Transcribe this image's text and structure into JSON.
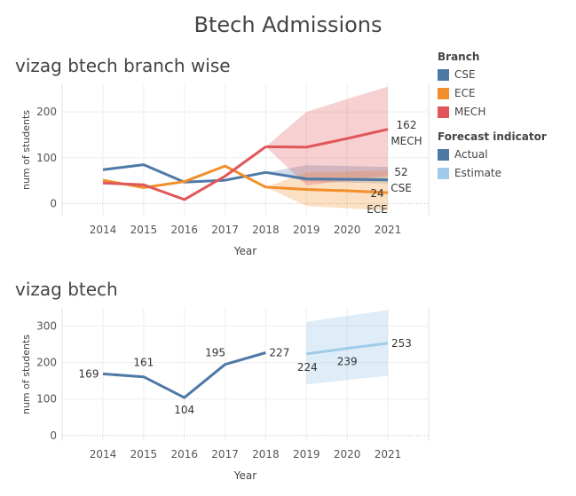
{
  "dashboard_title": "Btech Admissions",
  "legend": {
    "branch_title": "Branch",
    "branches": [
      {
        "name": "CSE",
        "color": "#4e79a7"
      },
      {
        "name": "ECE",
        "color": "#f28e2b"
      },
      {
        "name": "MECH",
        "color": "#e15759"
      }
    ],
    "forecast_title": "Forecast indicator",
    "indicators": [
      {
        "name": "Actual",
        "color": "#4e79a7"
      },
      {
        "name": "Estimate",
        "color": "#a0cbe8"
      }
    ]
  },
  "chart_data": [
    {
      "type": "line",
      "title": "vizag btech branch wise",
      "xlabel": "Year",
      "ylabel": "num of students",
      "x": [
        2014,
        2015,
        2016,
        2017,
        2018,
        2019,
        2020,
        2021
      ],
      "ylim": [
        -28,
        262
      ],
      "yticks": [
        0,
        100,
        200
      ],
      "series": [
        {
          "name": "CSE",
          "color": "#4e79a7",
          "actual": [
            74,
            85,
            47,
            51,
            68
          ],
          "forecast": [
            54,
            53,
            52
          ],
          "band_low": [
            48,
            46,
            44
          ],
          "band_high": [
            84,
            82,
            80
          ],
          "end_value": "52",
          "end_label": "CSE"
        },
        {
          "name": "ECE",
          "color": "#f28e2b",
          "actual": [
            51,
            35,
            48,
            82,
            36
          ],
          "forecast": [
            31,
            28,
            24
          ],
          "band_low": [
            -5,
            -10,
            -15
          ],
          "band_high": [
            68,
            70,
            72
          ],
          "end_value": "24",
          "end_label": "ECE"
        },
        {
          "name": "MECH",
          "color": "#e15759",
          "actual": [
            45,
            41,
            9,
            60,
            124
          ],
          "forecast": [
            123,
            142,
            162
          ],
          "band_low": [
            40,
            50,
            60
          ],
          "band_high": [
            200,
            228,
            255
          ],
          "end_value": "162",
          "end_label": "MECH"
        }
      ]
    },
    {
      "type": "line",
      "title": "vizag btech",
      "xlabel": "Year",
      "ylabel": "num of students",
      "x": [
        2014,
        2015,
        2016,
        2017,
        2018,
        2019,
        2020,
        2021
      ],
      "ylim": [
        -15,
        350
      ],
      "yticks": [
        0,
        100,
        200,
        300
      ],
      "actual": [
        169,
        161,
        104,
        195,
        227
      ],
      "estimate": [
        224,
        239,
        253
      ],
      "band_low": [
        140,
        152,
        164
      ],
      "band_high": [
        312,
        328,
        344
      ],
      "labels": [
        "169",
        "161",
        "104",
        "195",
        "227",
        "224",
        "239",
        "253"
      ]
    }
  ]
}
